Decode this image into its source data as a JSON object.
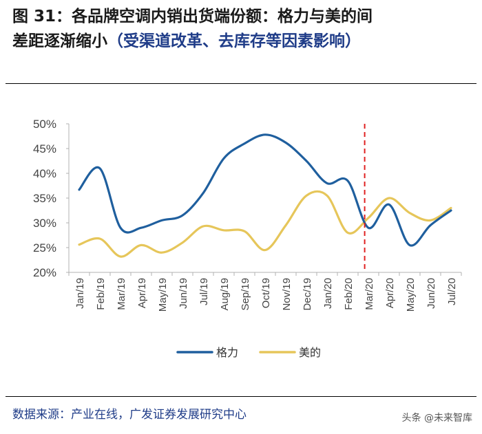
{
  "header": {
    "line1": "图 31：各品牌空调内销出货端份额：格力与美的间",
    "line2_main": "差距逐渐缩小",
    "line2_sub": "（受渠道改革、去库存等因素影响）"
  },
  "footer": {
    "source": "数据来源：产业在线，广发证券发展研究中心",
    "watermark": "头条 @未来智库"
  },
  "colors": {
    "gree": "#1f5f9e",
    "midea": "#e6c65a",
    "marker": "#e02020",
    "axis": "#b0b0b0",
    "text": "#444444"
  },
  "chart_data": {
    "type": "line",
    "title": "",
    "xlabel": "",
    "ylabel": "",
    "ylim": [
      0.2,
      0.5
    ],
    "yticks": [
      "50%",
      "45%",
      "40%",
      "35%",
      "30%",
      "25%",
      "20%"
    ],
    "categories": [
      "Jan/19",
      "Feb/19",
      "Mar/19",
      "Apr/19",
      "May/19",
      "Jun/19",
      "Jul/19",
      "Aug/19",
      "Sep/19",
      "Oct/19",
      "Nov/19",
      "Dec/19",
      "Jan/20",
      "Feb/20",
      "Mar/20",
      "Apr/20",
      "May/20",
      "Jun/20",
      "Jul/20"
    ],
    "series": [
      {
        "name": "格力",
        "values": [
          0.367,
          0.41,
          0.29,
          0.29,
          0.305,
          0.315,
          0.36,
          0.43,
          0.46,
          0.478,
          0.462,
          0.425,
          0.38,
          0.385,
          0.29,
          0.337,
          0.255,
          0.295,
          0.325
        ]
      },
      {
        "name": "美的",
        "values": [
          0.256,
          0.268,
          0.232,
          0.255,
          0.24,
          0.26,
          0.293,
          0.285,
          0.283,
          0.245,
          0.295,
          0.355,
          0.355,
          0.28,
          0.31,
          0.35,
          0.32,
          0.305,
          0.33
        ]
      }
    ],
    "marker_line": {
      "between": [
        "Feb/20",
        "Mar/20"
      ],
      "style": "dashed"
    },
    "legend": {
      "placement": "bottom-center"
    }
  }
}
